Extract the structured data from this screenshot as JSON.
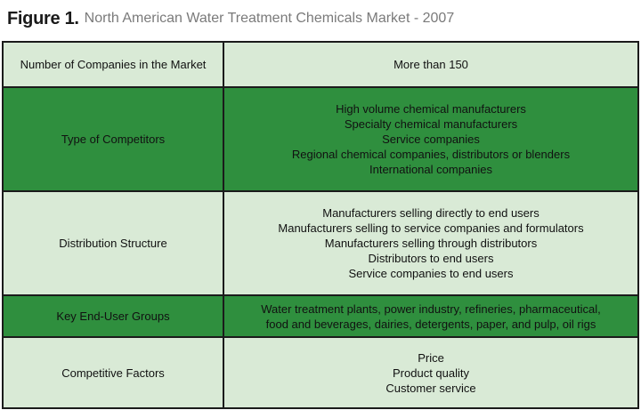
{
  "figure": {
    "label": "Figure 1.",
    "title": "North American Water Treatment Chemicals Market - 2007"
  },
  "chart_data": {
    "type": "table",
    "rows": [
      {
        "label": "Number of Companies in the Market",
        "values": [
          "More than 150"
        ]
      },
      {
        "label": "Type of Competitors",
        "values": [
          "High volume chemical manufacturers",
          "Specialty chemical manufacturers",
          "Service companies",
          "Regional chemical companies, distributors or blenders",
          "International companies"
        ]
      },
      {
        "label": "Distribution Structure",
        "values": [
          "Manufacturers selling directly to end users",
          "Manufacturers selling to service companies and formulators",
          "Manufacturers selling through distributors",
          "Distributors to end users",
          "Service companies to end users"
        ]
      },
      {
        "label": "Key End-User Groups",
        "values": [
          "Water treatment plants, power industry, refineries, pharmaceutical,",
          "food and beverages, dairies, detergents, paper, and pulp, oil rigs"
        ]
      },
      {
        "label": "Competitive Factors",
        "values": [
          "Price",
          "Product quality",
          "Customer service"
        ]
      }
    ]
  },
  "colors": {
    "light_row": "#d9ead6",
    "dark_row": "#2f8f3e",
    "border": "#1b1b1b"
  }
}
